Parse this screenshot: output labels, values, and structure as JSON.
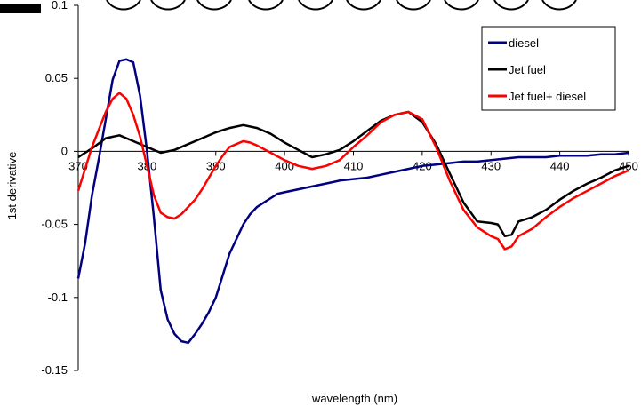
{
  "chart_data": {
    "type": "line",
    "title": "",
    "xlabel": "wavelength (nm)",
    "ylabel": "1st derivative",
    "xlim": [
      370,
      450
    ],
    "ylim": [
      -0.15,
      0.1
    ],
    "xticks": [
      "370",
      "380",
      "390",
      "400",
      "410",
      "420",
      "430",
      "440",
      "450"
    ],
    "yticks": [
      "-0.15",
      "-0.1",
      "-0.05",
      "0",
      "0.05",
      "0.1"
    ],
    "xtick_values": [
      370,
      380,
      390,
      400,
      410,
      420,
      430,
      440,
      450
    ],
    "ytick_values": [
      -0.15,
      -0.1,
      -0.05,
      0,
      0.05,
      0.1
    ],
    "grid": false,
    "legend_position": "top-right",
    "series": [
      {
        "name": "diesel",
        "color": "#000080",
        "x": [
          370,
          371,
          372,
          373,
          374,
          375,
          376,
          377,
          378,
          379,
          380,
          381,
          382,
          383,
          384,
          385,
          386,
          387,
          388,
          389,
          390,
          391,
          392,
          393,
          394,
          395,
          396,
          397,
          398,
          399,
          400,
          402,
          404,
          406,
          408,
          410,
          412,
          414,
          416,
          418,
          420,
          422,
          424,
          426,
          428,
          430,
          432,
          434,
          436,
          438,
          440,
          442,
          444,
          446,
          448,
          450
        ],
        "y": [
          -0.087,
          -0.063,
          -0.03,
          -0.005,
          0.022,
          0.049,
          0.062,
          0.063,
          0.061,
          0.038,
          0.0,
          -0.045,
          -0.095,
          -0.115,
          -0.125,
          -0.13,
          -0.131,
          -0.125,
          -0.118,
          -0.11,
          -0.1,
          -0.085,
          -0.07,
          -0.06,
          -0.05,
          -0.043,
          -0.038,
          -0.035,
          -0.032,
          -0.029,
          -0.028,
          -0.026,
          -0.024,
          -0.022,
          -0.02,
          -0.019,
          -0.018,
          -0.016,
          -0.014,
          -0.012,
          -0.01,
          -0.009,
          -0.008,
          -0.007,
          -0.007,
          -0.006,
          -0.005,
          -0.004,
          -0.004,
          -0.004,
          -0.003,
          -0.003,
          -0.003,
          -0.002,
          -0.002,
          -0.001
        ]
      },
      {
        "name": "Jet fuel",
        "color": "#000000",
        "x": [
          370,
          372,
          374,
          376,
          378,
          380,
          382,
          384,
          386,
          388,
          390,
          392,
          394,
          396,
          398,
          400,
          402,
          404,
          406,
          408,
          410,
          412,
          414,
          416,
          418,
          420,
          422,
          424,
          426,
          428,
          430,
          431,
          432,
          433,
          434,
          436,
          438,
          440,
          442,
          444,
          446,
          448,
          450
        ],
        "y": [
          -0.004,
          0.002,
          0.009,
          0.011,
          0.007,
          0.003,
          -0.001,
          0.001,
          0.005,
          0.009,
          0.013,
          0.016,
          0.018,
          0.016,
          0.012,
          0.006,
          0.001,
          -0.004,
          -0.002,
          0.001,
          0.007,
          0.014,
          0.021,
          0.025,
          0.027,
          0.02,
          0.005,
          -0.015,
          -0.035,
          -0.048,
          -0.049,
          -0.05,
          -0.058,
          -0.057,
          -0.048,
          -0.045,
          -0.04,
          -0.033,
          -0.027,
          -0.022,
          -0.018,
          -0.013,
          -0.01
        ]
      },
      {
        "name": "Jet fuel+ diesel",
        "color": "#ff0000",
        "x": [
          370,
          371,
          372,
          373,
          374,
          375,
          376,
          377,
          378,
          379,
          380,
          381,
          382,
          383,
          384,
          385,
          386,
          387,
          388,
          389,
          390,
          391,
          392,
          393,
          394,
          395,
          396,
          398,
          400,
          402,
          404,
          406,
          408,
          410,
          412,
          414,
          416,
          418,
          420,
          422,
          424,
          426,
          428,
          430,
          431,
          432,
          433,
          434,
          436,
          438,
          440,
          442,
          444,
          446,
          448,
          450
        ],
        "y": [
          -0.027,
          -0.012,
          0.003,
          0.015,
          0.027,
          0.036,
          0.04,
          0.036,
          0.025,
          0.01,
          -0.01,
          -0.03,
          -0.042,
          -0.045,
          -0.046,
          -0.043,
          -0.038,
          -0.033,
          -0.026,
          -0.018,
          -0.01,
          -0.003,
          0.003,
          0.005,
          0.007,
          0.006,
          0.004,
          -0.001,
          -0.006,
          -0.01,
          -0.012,
          -0.01,
          -0.006,
          0.003,
          0.011,
          0.02,
          0.025,
          0.027,
          0.022,
          0.003,
          -0.02,
          -0.04,
          -0.052,
          -0.058,
          -0.06,
          -0.067,
          -0.065,
          -0.058,
          -0.053,
          -0.045,
          -0.038,
          -0.032,
          -0.027,
          -0.022,
          -0.017,
          -0.013
        ]
      }
    ]
  }
}
